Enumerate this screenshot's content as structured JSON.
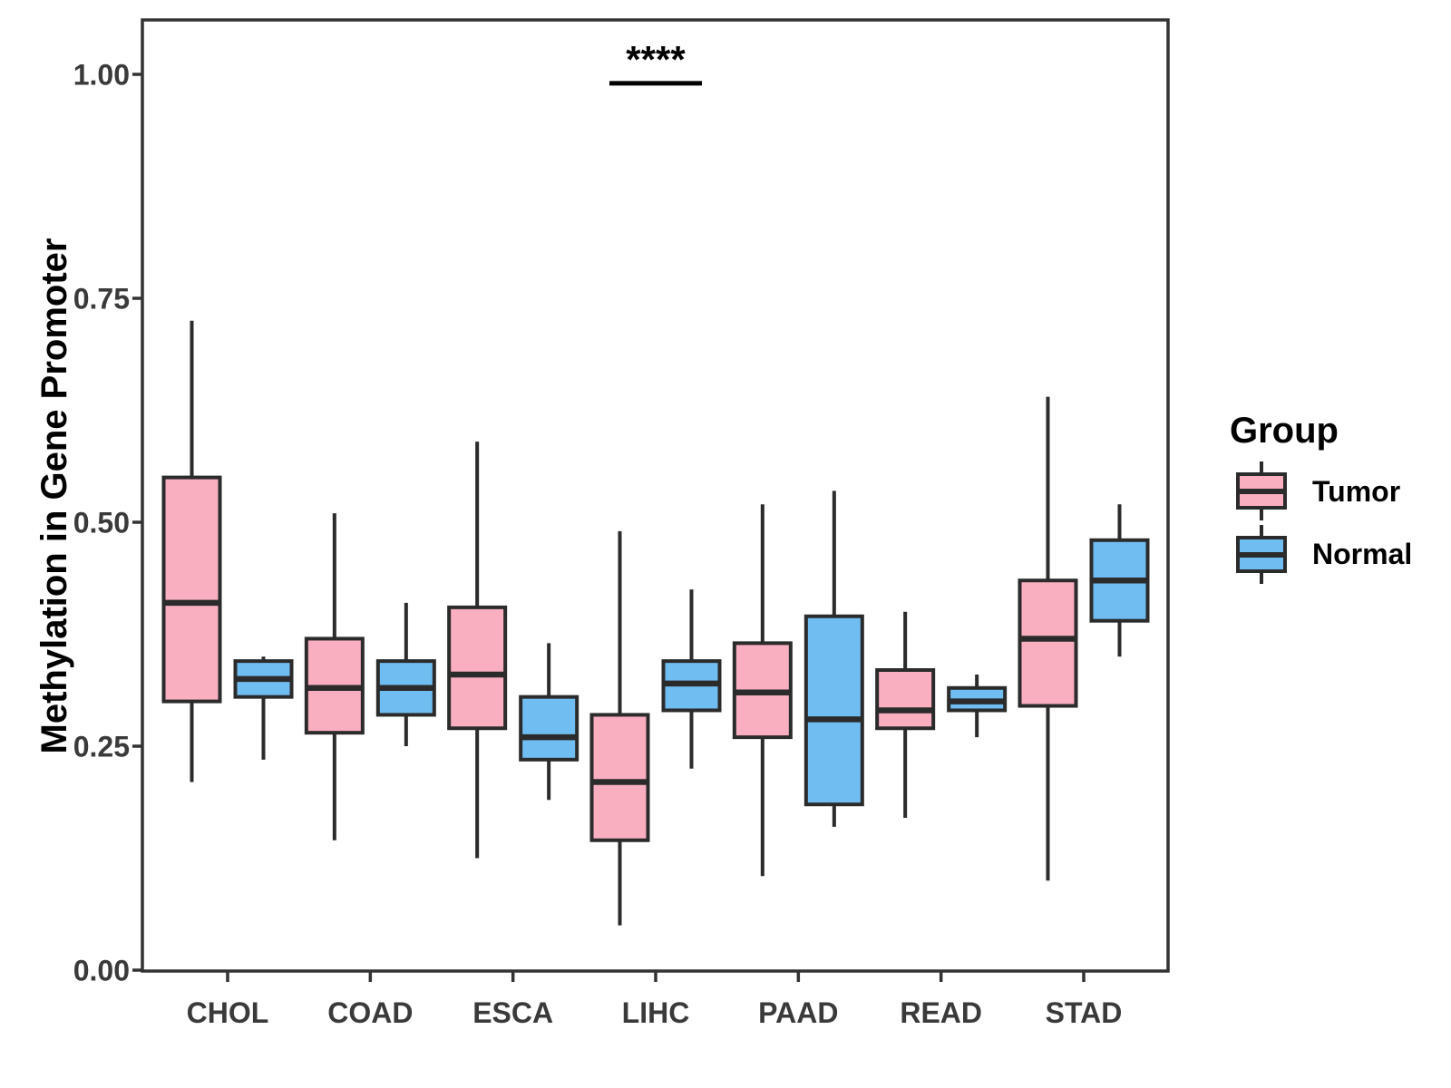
{
  "appearance": {
    "background": "#FFFFFF",
    "panel_border_color": "#333333",
    "box_stroke_color": "#2B2B2B",
    "tick_label_color": "#3A3A3A",
    "title_color": "#000000",
    "tumor_fill": "#FAAFC1",
    "normal_fill": "#70BDF2"
  },
  "figure": {
    "y_axis": {
      "label": "Methylation in Gene Promoter",
      "ticks": [
        "1.00",
        "0.75",
        "0.50",
        "0.25",
        "0.00"
      ]
    },
    "x_axis": {
      "categories": [
        "CHOL",
        "COAD",
        "ESCA",
        "LIHC",
        "PAAD",
        "READ",
        "STAD"
      ]
    },
    "legend": {
      "title": "Group",
      "items": [
        {
          "label": "Tumor",
          "color": "#FAAFC1"
        },
        {
          "label": "Normal",
          "color": "#70BDF2"
        }
      ]
    },
    "annotation": {
      "text": "****",
      "category": "LIHC",
      "y": 0.99
    }
  },
  "chart_data": {
    "type": "boxplot",
    "title": "",
    "xlabel": "",
    "ylabel": "Methylation in Gene Promoter",
    "ylim": [
      0.0,
      1.05
    ],
    "grid": false,
    "legend_position": "right",
    "categories": [
      "CHOL",
      "COAD",
      "ESCA",
      "LIHC",
      "PAAD",
      "READ",
      "STAD"
    ],
    "yticks": [
      {
        "label": "1.00",
        "value": 1.0
      },
      {
        "label": "0.75",
        "value": 0.75
      },
      {
        "label": "0.50",
        "value": 0.5
      },
      {
        "label": "0.25",
        "value": 0.25
      },
      {
        "label": "0.00",
        "value": 0.0
      }
    ],
    "series": [
      {
        "name": "Tumor",
        "color": "#FAAFC1",
        "boxes": [
          {
            "min": 0.21,
            "q1": 0.3,
            "median": 0.41,
            "q3": 0.55,
            "max": 0.725
          },
          {
            "min": 0.145,
            "q1": 0.265,
            "median": 0.315,
            "q3": 0.37,
            "max": 0.51
          },
          {
            "min": 0.125,
            "q1": 0.27,
            "median": 0.33,
            "q3": 0.405,
            "max": 0.59
          },
          {
            "min": 0.05,
            "q1": 0.145,
            "median": 0.21,
            "q3": 0.285,
            "max": 0.49
          },
          {
            "min": 0.105,
            "q1": 0.26,
            "median": 0.31,
            "q3": 0.365,
            "max": 0.52
          },
          {
            "min": 0.17,
            "q1": 0.27,
            "median": 0.29,
            "q3": 0.335,
            "max": 0.4
          },
          {
            "min": 0.1,
            "q1": 0.295,
            "median": 0.37,
            "q3": 0.435,
            "max": 0.64
          }
        ]
      },
      {
        "name": "Normal",
        "color": "#70BDF2",
        "boxes": [
          {
            "min": 0.235,
            "q1": 0.305,
            "median": 0.325,
            "q3": 0.345,
            "max": 0.35
          },
          {
            "min": 0.25,
            "q1": 0.285,
            "median": 0.315,
            "q3": 0.345,
            "max": 0.41
          },
          {
            "min": 0.19,
            "q1": 0.235,
            "median": 0.26,
            "q3": 0.305,
            "max": 0.365
          },
          {
            "min": 0.225,
            "q1": 0.29,
            "median": 0.32,
            "q3": 0.345,
            "max": 0.425
          },
          {
            "min": 0.16,
            "q1": 0.185,
            "median": 0.28,
            "q3": 0.395,
            "max": 0.535
          },
          {
            "min": 0.26,
            "q1": 0.29,
            "median": 0.3,
            "q3": 0.315,
            "max": 0.33
          },
          {
            "min": 0.35,
            "q1": 0.39,
            "median": 0.435,
            "q3": 0.48,
            "max": 0.52
          }
        ]
      }
    ],
    "significance": {
      "label": "****",
      "category": "LIHC",
      "bar_y": 0.99
    }
  }
}
